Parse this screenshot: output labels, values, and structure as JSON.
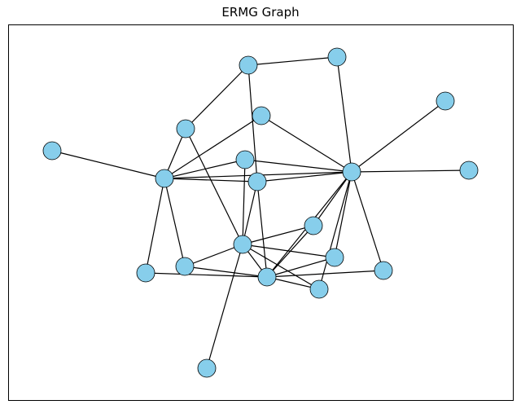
{
  "title": "ERMG Graph",
  "colors": {
    "node_fill": "#87CEEB",
    "node_stroke": "#000000",
    "edge": "#000000",
    "frame": "#000000",
    "background": "#ffffff"
  },
  "graph": {
    "node_count": 22,
    "edges": [
      [
        "n1",
        "n2"
      ],
      [
        "n1",
        "n4"
      ],
      [
        "n1",
        "n7"
      ],
      [
        "n2",
        "n10"
      ],
      [
        "n4",
        "n6"
      ],
      [
        "n4",
        "n15"
      ],
      [
        "n5",
        "n6"
      ],
      [
        "n5",
        "n10"
      ],
      [
        "n6",
        "n7"
      ],
      [
        "n6",
        "n8"
      ],
      [
        "n6",
        "n17"
      ],
      [
        "n6",
        "n18"
      ],
      [
        "n6",
        "n9"
      ],
      [
        "n7",
        "n8"
      ],
      [
        "n7",
        "n10"
      ],
      [
        "n7",
        "n9"
      ],
      [
        "n7",
        "n20"
      ],
      [
        "n8",
        "n10"
      ],
      [
        "n8",
        "n15"
      ],
      [
        "n9",
        "n10"
      ],
      [
        "n9",
        "n15"
      ],
      [
        "n9",
        "n13"
      ],
      [
        "n10",
        "n11"
      ],
      [
        "n10",
        "n12"
      ],
      [
        "n10",
        "n14"
      ],
      [
        "n10",
        "n16"
      ],
      [
        "n10",
        "n19"
      ],
      [
        "n10",
        "n20"
      ],
      [
        "n13",
        "n20"
      ],
      [
        "n14",
        "n20"
      ],
      [
        "n15",
        "n14"
      ],
      [
        "n15",
        "n16"
      ],
      [
        "n15",
        "n19"
      ],
      [
        "n15",
        "n22"
      ],
      [
        "n17",
        "n20"
      ],
      [
        "n17",
        "n18"
      ],
      [
        "n18",
        "n20"
      ],
      [
        "n18",
        "n15"
      ],
      [
        "n20",
        "n21"
      ],
      [
        "n20",
        "n19"
      ]
    ]
  }
}
